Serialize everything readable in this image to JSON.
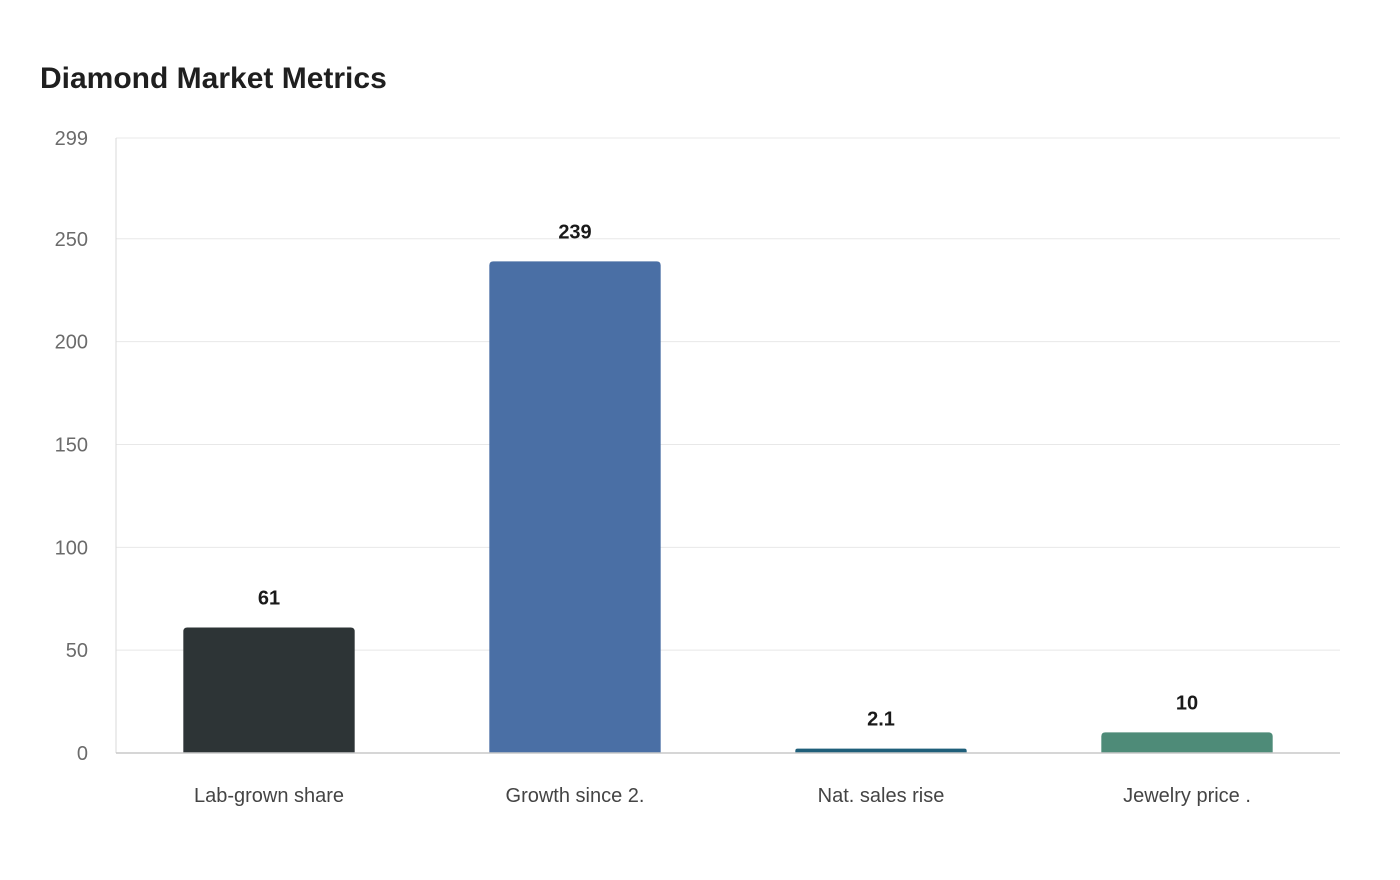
{
  "chart_data": {
    "type": "bar",
    "title": "Diamond Market Metrics",
    "xlabel": "",
    "ylabel": "",
    "categories": [
      "Lab-grown share",
      "Growth since 2.",
      "Nat. sales rise",
      "Jewelry price ."
    ],
    "values": [
      61,
      239,
      2.1,
      10
    ],
    "value_labels": [
      "61",
      "239",
      "2.1",
      "10"
    ],
    "colors": [
      "#2d3436",
      "#4a6fa5",
      "#1f5f7a",
      "#4e8b78"
    ],
    "ylim": [
      0,
      299
    ],
    "yticks": [
      0,
      50,
      100,
      150,
      200,
      250,
      299
    ],
    "grid": true,
    "legend": "none"
  }
}
